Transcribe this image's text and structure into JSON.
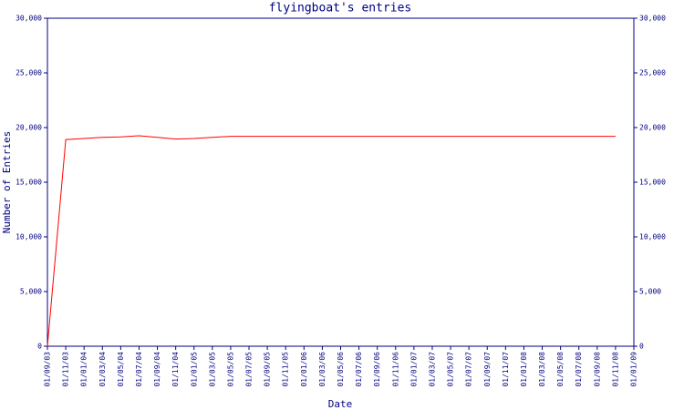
{
  "chart_data": {
    "type": "line",
    "title": "flyingboat's entries",
    "x_label": "Date",
    "y_label": "Number of Entries",
    "categories": [
      "01/09/03",
      "01/11/03",
      "01/01/04",
      "01/03/04",
      "01/05/04",
      "01/07/04",
      "01/09/04",
      "01/11/04",
      "01/01/05",
      "01/03/05",
      "01/05/05",
      "01/07/05",
      "01/09/05",
      "01/11/05",
      "01/01/06",
      "01/03/06",
      "01/05/06",
      "01/07/06",
      "01/09/06",
      "01/11/06",
      "01/01/07",
      "01/03/07",
      "01/05/07",
      "01/07/07",
      "01/09/07",
      "01/11/07",
      "01/01/08",
      "01/03/08",
      "01/05/08",
      "01/07/08",
      "01/09/08",
      "01/11/08",
      "01/01/09"
    ],
    "series": [
      {
        "color": "#ff0000",
        "values": [
          0,
          18900,
          19000,
          19100,
          19150,
          19250,
          19100,
          18950,
          19000,
          19100,
          19200,
          19200,
          19200,
          19200,
          19200,
          19200,
          19200,
          19200,
          19200,
          19200,
          19200,
          19200,
          19200,
          19200,
          19200,
          19200,
          19200,
          19200,
          19200,
          19200,
          19200,
          19200,
          null
        ]
      }
    ],
    "ylim": [
      0,
      30000
    ],
    "yticks": [
      0,
      {
        "value": 5000,
        "label": "5,000"
      },
      {
        "value": 10000,
        "label": "10,000"
      },
      {
        "value": 15000,
        "label": "15,000"
      },
      {
        "value": 20000,
        "label": "20,000"
      },
      {
        "value": 25000,
        "label": "25,000"
      },
      {
        "value": 30000,
        "label": "30,000"
      }
    ],
    "y2lim": [
      0,
      30000
    ],
    "y2ticks": [
      0,
      {
        "value": 5000,
        "label": "5,000"
      },
      {
        "value": 10000,
        "label": "10,000"
      },
      {
        "value": 15000,
        "label": "15,000"
      },
      {
        "value": 20000,
        "label": "20,000"
      },
      {
        "value": 25000,
        "label": "25,000"
      },
      {
        "value": 30000,
        "label": "30,000"
      }
    ],
    "axis_color": "#000080",
    "grid": false
  }
}
